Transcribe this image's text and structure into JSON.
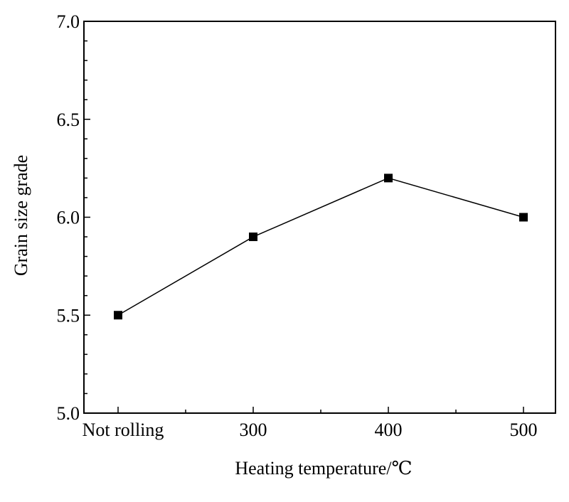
{
  "chart_data": {
    "type": "line",
    "title": "",
    "xlabel": "Heating temperature/℃",
    "ylabel": "Grain size grade",
    "categories": [
      "Not rolling",
      "300",
      "400",
      "500"
    ],
    "series": [
      {
        "values": [
          5.5,
          5.9,
          6.2,
          6.0
        ],
        "marker": "square",
        "color": "#000000"
      }
    ],
    "ylim": [
      5.0,
      7.0
    ],
    "yticks": [
      "5.0",
      "5.5",
      "6.0",
      "6.5",
      "7.0"
    ],
    "grid": false,
    "legend": "none"
  }
}
